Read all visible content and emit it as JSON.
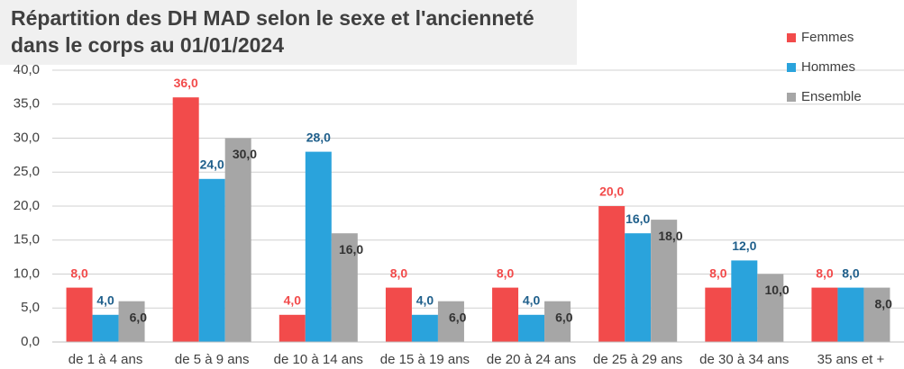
{
  "chart_data": {
    "type": "bar",
    "title": "Répartition des DH MAD selon le sexe et l'ancienneté dans le corps au 01/01/2024",
    "categories": [
      "de 1 à 4 ans",
      "de 5 à 9 ans",
      "de 10 à 14 ans",
      "de 15 à 19 ans",
      "de 20 à 24 ans",
      "de 25 à 29 ans",
      "de 30 à 34 ans",
      "35 ans et +"
    ],
    "series": [
      {
        "name": "Femmes",
        "color": "#f24b4b",
        "values": [
          8,
          36,
          4,
          8,
          8,
          20,
          8,
          8
        ],
        "value_labels": [
          "8,0",
          "36,0",
          "4,0",
          "8,0",
          "8,0",
          "20,0",
          "8,0",
          "8,0"
        ]
      },
      {
        "name": "Hommes",
        "color": "#2aa3dc",
        "values": [
          4,
          24,
          28,
          4,
          4,
          16,
          12,
          8
        ],
        "value_labels": [
          "4,0",
          "24,0",
          "28,0",
          "4,0",
          "4,0",
          "16,0",
          "12,0",
          "8,0"
        ]
      },
      {
        "name": "Ensemble",
        "color": "#a6a6a6",
        "values": [
          6,
          30,
          16,
          6,
          6,
          18,
          10,
          8
        ],
        "value_labels": [
          "6,0",
          "30,0",
          "16,0",
          "6,0",
          "6,0",
          "18,0",
          "10,0",
          "8,0"
        ]
      }
    ],
    "ylim": [
      0,
      40
    ],
    "yticks": [
      {
        "value": 0,
        "label": "0,0"
      },
      {
        "value": 5,
        "label": "5,0"
      },
      {
        "value": 10,
        "label": "10,0"
      },
      {
        "value": 15,
        "label": "15,0"
      },
      {
        "value": 20,
        "label": "20,0"
      },
      {
        "value": 25,
        "label": "25,0"
      },
      {
        "value": 30,
        "label": "30,0"
      },
      {
        "value": 35,
        "label": "35,0"
      },
      {
        "value": 40,
        "label": "40,0"
      }
    ],
    "grid": true,
    "legend": "top-right"
  }
}
